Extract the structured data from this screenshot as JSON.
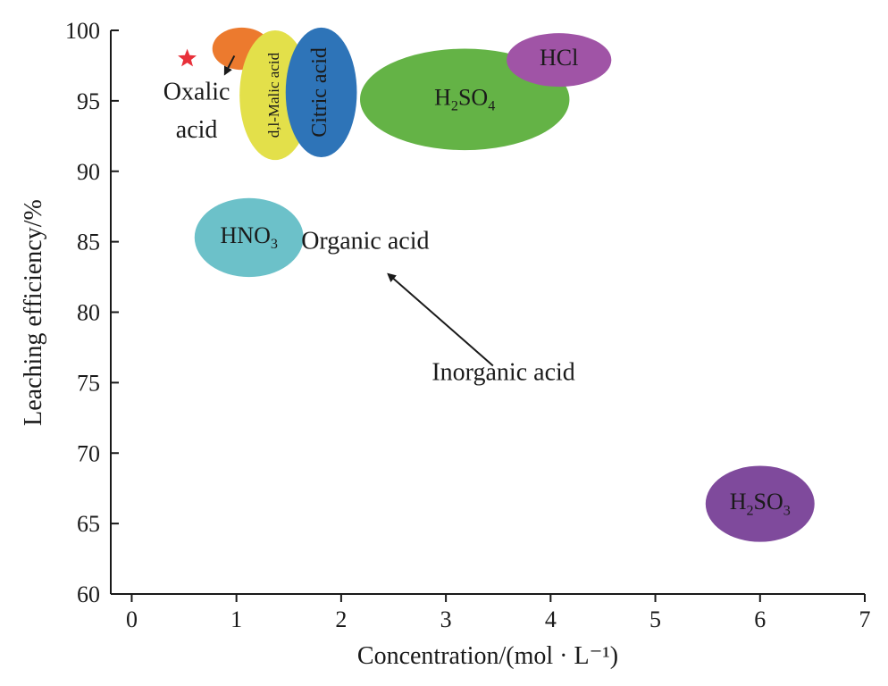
{
  "chart_data": {
    "type": "scatter",
    "xlabel": "Concentration/(mol · L⁻¹)",
    "ylabel": "Leaching efficiency/%",
    "xlim": [
      -0.2,
      7
    ],
    "ylim": [
      60,
      100
    ],
    "xticks": [
      "0",
      "1",
      "2",
      "3",
      "4",
      "5",
      "6",
      "7"
    ],
    "yticks": [
      "60",
      "65",
      "70",
      "75",
      "80",
      "85",
      "90",
      "95",
      "100"
    ],
    "grid": false,
    "points": [
      {
        "label": "",
        "x": 1.05,
        "y": 98.7,
        "rx": 0.28,
        "ry": 1.5,
        "color": "#ec7a2e",
        "label_inside": false
      },
      {
        "label": "d,l-Malic acid",
        "x": 1.37,
        "y": 95.4,
        "rx": 0.34,
        "ry": 4.6,
        "color": "#e3e04a",
        "label_inside": true,
        "vertical": true
      },
      {
        "label": "Citric acid",
        "x": 1.81,
        "y": 95.6,
        "rx": 0.34,
        "ry": 4.6,
        "color": "#2e74b8",
        "label_inside": true,
        "vertical": true
      },
      {
        "label": "H2SO4",
        "x": 3.18,
        "y": 95.1,
        "rx": 1.0,
        "ry": 3.6,
        "color": "#64b346",
        "label_inside": true
      },
      {
        "label": "HCl",
        "x": 4.08,
        "y": 97.9,
        "rx": 0.5,
        "ry": 1.9,
        "color": "#a054a6",
        "label_inside": true
      },
      {
        "label": "HNO3",
        "x": 1.12,
        "y": 85.3,
        "rx": 0.52,
        "ry": 2.8,
        "color": "#6cc1c9",
        "label_inside": true
      },
      {
        "label": "H2SO3",
        "x": 6.0,
        "y": 66.4,
        "rx": 0.52,
        "ry": 2.7,
        "color": "#7f4a9c",
        "label_inside": true
      }
    ],
    "marker": {
      "shape": "star",
      "x": 0.53,
      "y": 98.0,
      "color": "#e8303a"
    },
    "annotations": [
      {
        "text": "Oxalic",
        "x": 0.62,
        "y": 95.5
      },
      {
        "text": "acid",
        "x": 0.62,
        "y": 92.8
      },
      {
        "text": "Organic acid",
        "x": 2.23,
        "y": 84.9
      },
      {
        "text": "Inorganic acid",
        "x": 3.55,
        "y": 75.6
      }
    ],
    "arrows": [
      {
        "from": [
          0.98,
          98.2
        ],
        "to": [
          0.89,
          96.9
        ]
      },
      {
        "from": [
          3.45,
          76.2
        ],
        "to": [
          2.45,
          82.7
        ]
      }
    ]
  }
}
